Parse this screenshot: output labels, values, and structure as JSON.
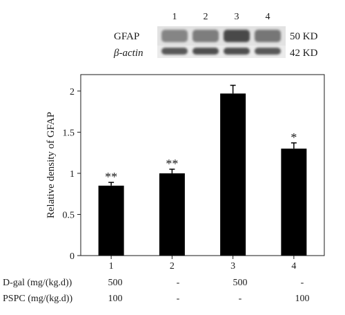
{
  "blot": {
    "lane_numbers": [
      "1",
      "2",
      "3",
      "4"
    ],
    "rows": [
      {
        "name": "GFAP",
        "size": "50 KD",
        "intensity": [
          0.45,
          0.5,
          0.85,
          0.55
        ]
      },
      {
        "name": "β-actin",
        "size": "42 KD",
        "intensity": [
          0.75,
          0.8,
          0.8,
          0.75
        ]
      }
    ]
  },
  "chart_data": {
    "type": "bar",
    "categories": [
      "1",
      "2",
      "3",
      "4"
    ],
    "values": [
      0.85,
      1.0,
      1.97,
      1.3
    ],
    "errors": [
      0.04,
      0.05,
      0.1,
      0.07
    ],
    "significance": [
      "**",
      "**",
      "",
      "*"
    ],
    "ylabel": "Relative density of GFAP",
    "xlabel": "",
    "ylim": [
      0,
      2.2
    ],
    "yticks": [
      0,
      0.5,
      1,
      1.5,
      2
    ],
    "ytick_labels": [
      "0",
      "0.5",
      "1",
      "1.5",
      "2"
    ],
    "bar_color": "#000000"
  },
  "treatment_table": {
    "rows": [
      {
        "label": "D-gal (mg/(kg.d))",
        "values": [
          "500",
          "-",
          "500",
          "-"
        ]
      },
      {
        "label": "PSPC (mg/(kg.d))",
        "values": [
          "100",
          "-",
          "-",
          "100"
        ]
      }
    ]
  }
}
